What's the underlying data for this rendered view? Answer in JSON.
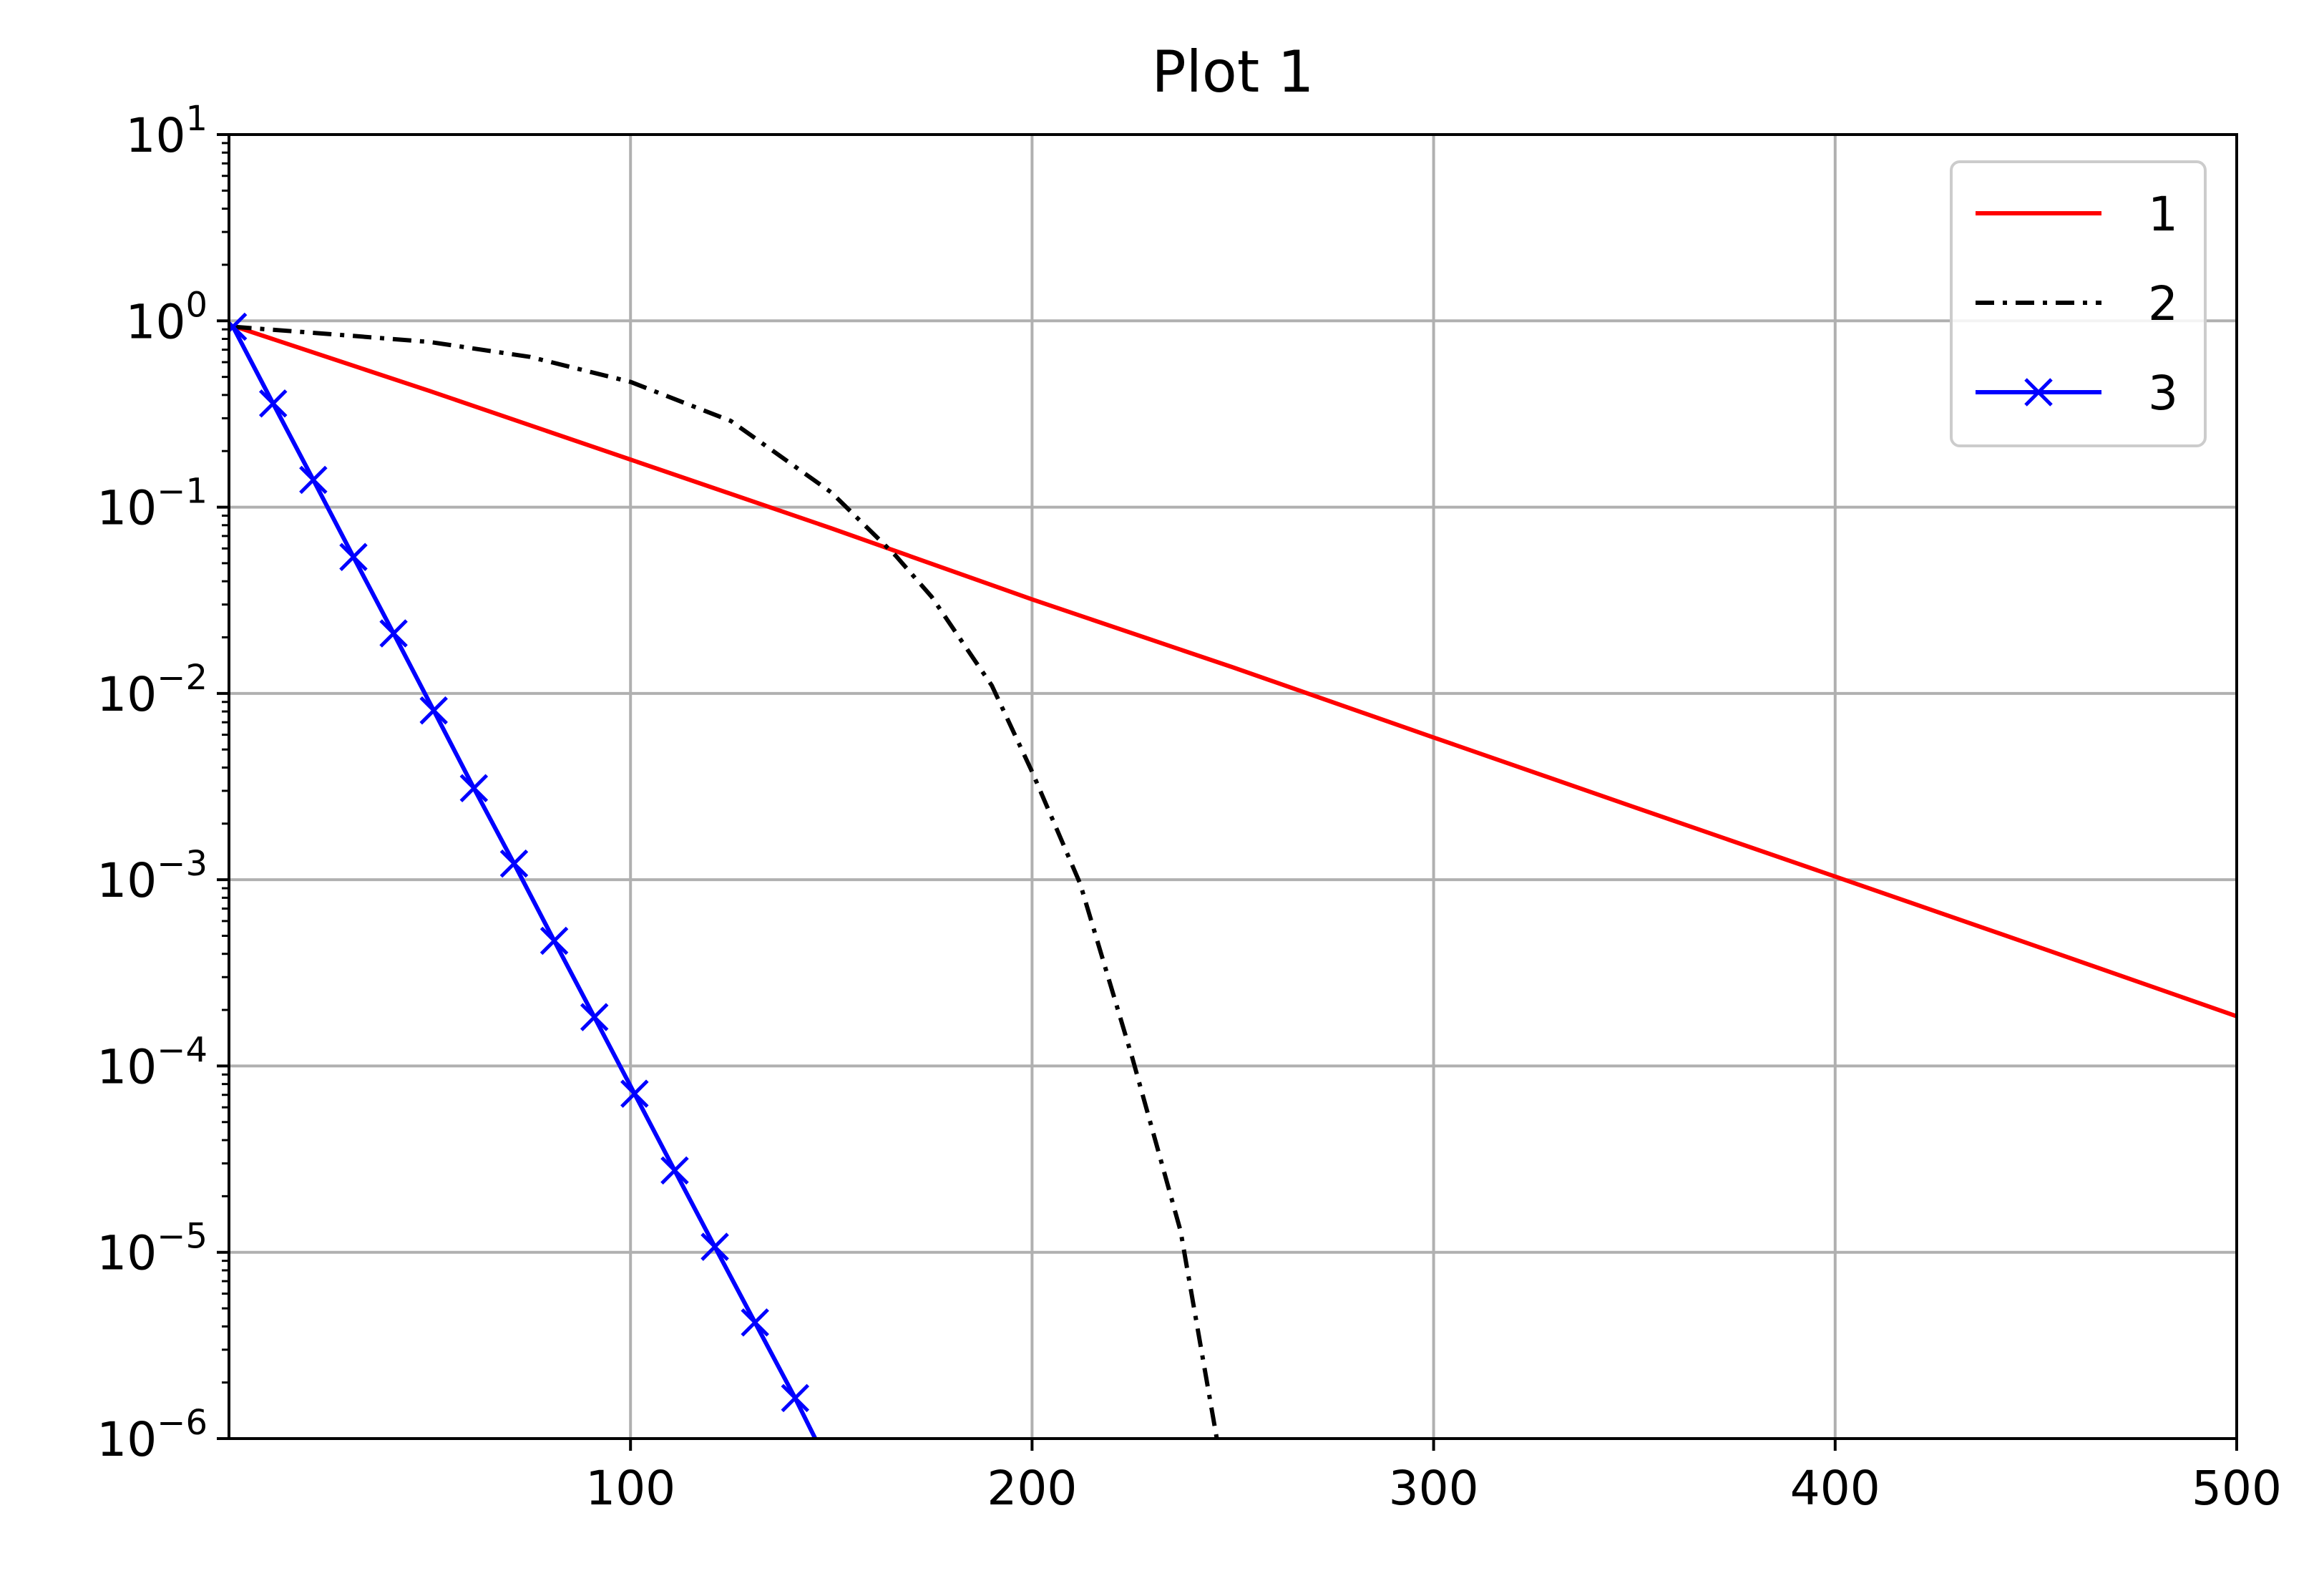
{
  "chart_data": {
    "type": "line",
    "title": "Plot 1",
    "xlabel": "",
    "ylabel": "",
    "xlim": [
      0,
      500
    ],
    "ylim": [
      1e-06,
      10
    ],
    "yscale": "log",
    "grid": true,
    "legend_position": "top-right",
    "x_ticks": [
      100,
      200,
      300,
      400,
      500
    ],
    "y_ticks": [
      {
        "value": 1e-06,
        "base": "10",
        "exp": "−6"
      },
      {
        "value": 1e-05,
        "base": "10",
        "exp": "−5"
      },
      {
        "value": 0.0001,
        "base": "10",
        "exp": "−4"
      },
      {
        "value": 0.001,
        "base": "10",
        "exp": "−3"
      },
      {
        "value": 0.01,
        "base": "10",
        "exp": "−2"
      },
      {
        "value": 0.1,
        "base": "10",
        "exp": "−1"
      },
      {
        "value": 1,
        "base": "10",
        "exp": "0"
      },
      {
        "value": 10,
        "base": "10",
        "exp": "1"
      }
    ],
    "series": [
      {
        "name": "1",
        "color": "#ff0000",
        "style": "solid",
        "marker": "none",
        "x": [
          1,
          50,
          100,
          150,
          200,
          250,
          300,
          350,
          400,
          450,
          500
        ],
        "y": [
          0.94,
          0.42,
          0.18,
          0.077,
          0.032,
          0.0138,
          0.0058,
          0.00245,
          0.00104,
          0.00044,
          0.000185
        ]
      },
      {
        "name": "2",
        "color": "#000000",
        "style": "dashdot",
        "marker": "none",
        "x": [
          1,
          25,
          50,
          75,
          100,
          125,
          150,
          166,
          175,
          190,
          200,
          212,
          225,
          237,
          246
        ],
        "y": [
          0.93,
          0.85,
          0.77,
          0.64,
          0.47,
          0.29,
          0.12,
          0.055,
          0.033,
          0.011,
          0.0038,
          0.00095,
          0.00011,
          1.3e-05,
          1e-06
        ]
      },
      {
        "name": "3",
        "color": "#0000ff",
        "style": "solid",
        "marker": "x",
        "x": [
          1,
          11,
          21,
          31,
          41,
          51,
          61,
          71,
          81,
          91,
          101,
          111,
          121,
          131,
          141,
          146
        ],
        "y": [
          0.93,
          0.36,
          0.14,
          0.054,
          0.021,
          0.0081,
          0.0031,
          0.00122,
          0.00047,
          0.000183,
          7.1e-05,
          2.75e-05,
          1.07e-05,
          4.2e-06,
          1.65e-06,
          1e-06
        ],
        "marker_x": [
          1,
          11,
          21,
          31,
          41,
          51,
          61,
          71,
          81,
          91,
          101,
          111,
          121,
          131,
          141
        ],
        "marker_y": [
          0.93,
          0.36,
          0.14,
          0.054,
          0.021,
          0.0081,
          0.0031,
          0.00122,
          0.00047,
          0.000183,
          7.1e-05,
          2.75e-05,
          1.07e-05,
          4.2e-06,
          1.65e-06
        ]
      }
    ]
  }
}
